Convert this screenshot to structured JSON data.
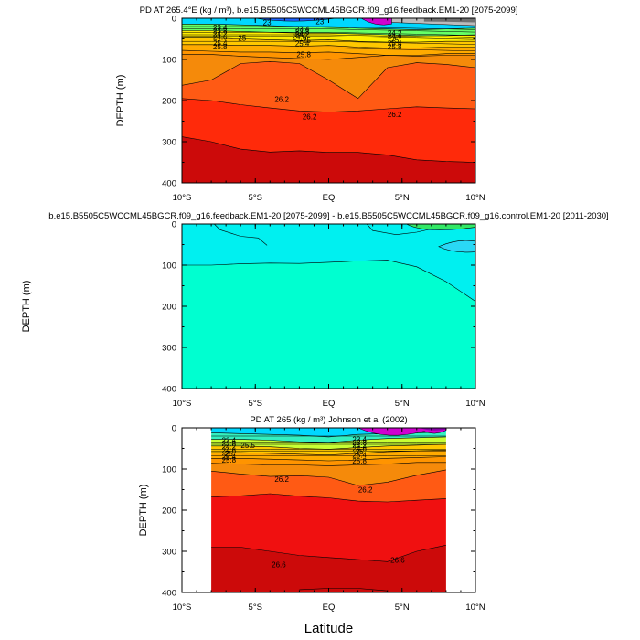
{
  "colors": {
    "c22": "#1e64ff",
    "c23": "#00d7ff",
    "c235": "#33f0c0",
    "c24": "#66ff66",
    "c245": "#c8ff33",
    "c25": "#ffee00",
    "c252": "#ffc800",
    "c254": "#ffaa00",
    "c256": "#ff9400",
    "c258": "#f58a0a",
    "c260": "#ff5a14",
    "c262": "#ff2a0a",
    "c264": "#f01010",
    "c266": "#cc0a0a",
    "magenta": "#d000d0",
    "darkgray": "#707070",
    "lightgray": "#bbbbbb",
    "diffCyan": "#00f0f0",
    "diffAqua": "#00ffd0",
    "diffGreen": "#33e866",
    "line": "#000000"
  },
  "chart_data": [
    {
      "type": "contour",
      "title": "PD AT 265.4°E (kg / m³), b.e15.B5505C5WCCML45BGCR.f09_g16.feedback.EM1-20 [2075-2099]",
      "xlabel": "",
      "ylabel": "DEPTH (m)",
      "xlim": [
        -10,
        10
      ],
      "ylim": [
        400,
        0
      ],
      "xticks": [
        "10°S",
        "5°S",
        "EQ",
        "5°N",
        "10°N"
      ],
      "yticks": [
        "0",
        "100",
        "200",
        "300",
        "400"
      ],
      "contour_labels": [
        "23",
        "23",
        "23.4",
        "23.8",
        "24.2",
        "24.6",
        "25",
        "25.4",
        "25.8",
        "26.2",
        "26.2",
        "23.4",
        "23.8",
        "24.2",
        "24.6",
        "25",
        "25.4",
        "25.8",
        "26.2",
        "24.2",
        "24.6",
        "25",
        "25.4",
        "25.8"
      ]
    },
    {
      "type": "contour",
      "title": "b.e15.B5505C5WCCML45BGCR.f09_g16.feedback.EM1-20 [2075-2099] - b.e15.B5505C5WCCML45BGCR.f09_g16.control.EM1-20 [2011-2030]",
      "xlabel": "",
      "ylabel": "DEPTH (m)",
      "xlim": [
        -10,
        10
      ],
      "ylim": [
        400,
        0
      ],
      "xticks": [
        "10°S",
        "5°S",
        "EQ",
        "5°N",
        "10°N"
      ],
      "yticks": [
        "0",
        "100",
        "200",
        "300",
        "400"
      ],
      "contour_labels": []
    },
    {
      "type": "contour",
      "title": "PD AT 265 (kg / m³) Johnson et al (2002)",
      "xlabel": "Latitude",
      "ylabel": "DEPTH (m)",
      "xlim": [
        -10,
        10
      ],
      "ylim": [
        400,
        0
      ],
      "data_xlim": [
        -8,
        8
      ],
      "xticks": [
        "10°S",
        "5°S",
        "EQ",
        "5°N",
        "10°N"
      ],
      "yticks": [
        "0",
        "100",
        "200",
        "300",
        "400"
      ],
      "contour_labels": [
        "23.4",
        "23.8",
        "24.2",
        "24.6",
        "25",
        "25.4",
        "25.8",
        "23.4",
        "23.8",
        "24.2",
        "24.6",
        "25",
        "25.4",
        "25.8",
        "25.5",
        "26.2",
        "26.2",
        "26.6",
        "26.6"
      ]
    }
  ]
}
